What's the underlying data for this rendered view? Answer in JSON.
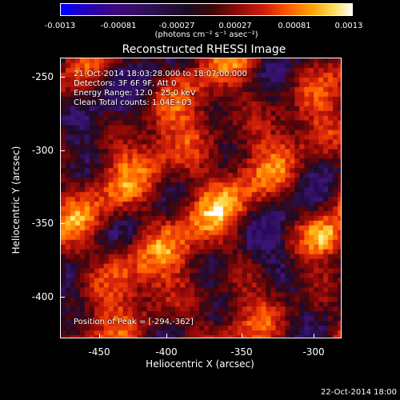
{
  "colorbar": {
    "ticks": [
      "-0.0013",
      "-0.00081",
      "-0.00027",
      "0.00027",
      "0.00081",
      "0.0013"
    ],
    "unit": "(photons cm⁻² s⁻¹ asec⁻²)"
  },
  "title": "Reconstructed RHESSI Image",
  "info": {
    "time_range": "21-Oct-2014 18:03:28.000 to 18:07:00.000",
    "detectors": "Detectors: 3F 6F 9F, Att 0",
    "energy": "Energy Range: 12.0 - 25.0 keV",
    "method": "Clean    Total counts: 1.04E+03",
    "peak": "Position of Peak = [-294,-362]"
  },
  "axes": {
    "xlabel": "Heliocentric X (arcsec)",
    "ylabel": "Heliocentric Y (arcsec)",
    "x_ticks": [
      "-450",
      "-400",
      "-350",
      "-300"
    ],
    "y_ticks": [
      "-250",
      "-300",
      "-350",
      "-400"
    ]
  },
  "footer": "22-Oct-2014 18:00",
  "colors": {
    "background": "#000000",
    "text": "#ffffff",
    "colormap": [
      "#0000ff",
      "#2a00b0",
      "#3d0a7a",
      "#1a0a20",
      "#8a0a0a",
      "#d21e0a",
      "#ff5a00",
      "#ffa000",
      "#ffe060",
      "#ffffff"
    ]
  }
}
